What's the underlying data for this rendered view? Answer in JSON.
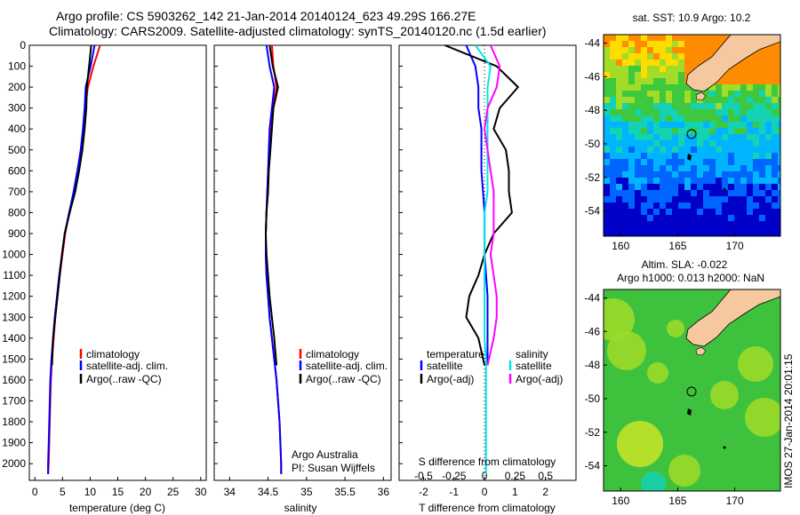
{
  "header": {
    "line1": "Argo profile: CS 5903262_142 21-Jan-2014 20140124_623 49.29S 166.27E",
    "line2": "Climatology: CARS2009. Satellite-adjusted climatology: synTS_20140120.nc (1.5d earlier)"
  },
  "side_text": {
    "vertical_stamp": "IMOS 27-Jan-2014 20:01:15",
    "argo_australia": "Argo Australia",
    "pi": "PI: Susan Wijffels"
  },
  "colors": {
    "climatology": "#ff0000",
    "satellite": "#0000ff",
    "argo": "#000000",
    "sal_satellite": "#00e5ee",
    "sal_argo": "#ff00ff"
  },
  "chart_data": [
    {
      "type": "line",
      "xlabel": "temperature (deg C)",
      "ylabel": "",
      "xlim": [
        -1,
        31
      ],
      "ylim": [
        2080,
        0
      ],
      "xticks": [
        0,
        5,
        10,
        15,
        20,
        25,
        30
      ],
      "yticks": [
        0,
        100,
        200,
        300,
        400,
        500,
        600,
        700,
        800,
        900,
        1000,
        1100,
        1200,
        1300,
        1400,
        1500,
        1600,
        1700,
        1800,
        1900,
        2000
      ],
      "legend": [
        "climatology",
        "satellite-adj. clim.",
        "Argo(..raw -QC)"
      ],
      "legend_position": "lower-left",
      "series": [
        {
          "name": "climatology",
          "color": "#ff0000",
          "x": [
            11.8,
            10.6,
            9.6,
            9.1,
            8.8,
            8.4,
            7.8,
            7.1,
            6.2,
            5.5,
            5.0,
            4.5,
            4.1,
            3.7,
            3.4,
            3.1,
            2.9,
            2.8,
            2.7,
            2.6,
            2.5,
            2.4
          ],
          "y": [
            0,
            100,
            200,
            300,
            400,
            500,
            600,
            700,
            800,
            900,
            1000,
            1100,
            1200,
            1300,
            1400,
            1500,
            1600,
            1700,
            1800,
            1900,
            2000,
            2050
          ]
        },
        {
          "name": "satellite-adj. clim.",
          "color": "#0000ff",
          "x": [
            10.8,
            10.1,
            9.2,
            9.0,
            8.7,
            8.3,
            7.7,
            7.0,
            6.2,
            5.4,
            4.9,
            4.4,
            4.0,
            3.6,
            3.3,
            3.0,
            2.8,
            2.7,
            2.6,
            2.5,
            2.4,
            2.4
          ],
          "y": [
            0,
            100,
            200,
            300,
            400,
            500,
            600,
            700,
            800,
            900,
            1000,
            1100,
            1200,
            1300,
            1400,
            1500,
            1600,
            1700,
            1800,
            1900,
            2000,
            2050
          ]
        },
        {
          "name": "Argo(..raw -QC)",
          "color": "#000000",
          "x": [
            10.2,
            9.8,
            9.4,
            9.3,
            9.0,
            8.6,
            8.0,
            7.3,
            6.3,
            5.4,
            4.9,
            4.5,
            4.1,
            3.7,
            3.3,
            3.1
          ],
          "y": [
            0,
            100,
            200,
            300,
            400,
            500,
            600,
            700,
            800,
            900,
            1000,
            1100,
            1200,
            1300,
            1400,
            1530
          ]
        }
      ]
    },
    {
      "type": "line",
      "xlabel": "salinity",
      "ylabel": "",
      "xlim": [
        33.8,
        36.1
      ],
      "ylim": [
        2080,
        0
      ],
      "xticks": [
        34,
        34.5,
        35,
        35.5,
        36
      ],
      "legend": [
        "climatology",
        "satellite-adj. clim.",
        "Argo(..raw -QC)"
      ],
      "legend_position": "lower-right",
      "series": [
        {
          "name": "climatology",
          "color": "#ff0000",
          "x": [
            34.55,
            34.57,
            34.61,
            34.56,
            34.53,
            34.52,
            34.5,
            34.49,
            34.48,
            34.47,
            34.47,
            34.48,
            34.5,
            34.52,
            34.55,
            34.58,
            34.61,
            34.63,
            34.65,
            34.66,
            34.67,
            34.67
          ],
          "y": [
            0,
            100,
            200,
            300,
            400,
            500,
            600,
            700,
            800,
            900,
            1000,
            1100,
            1200,
            1300,
            1400,
            1500,
            1600,
            1700,
            1800,
            1900,
            2000,
            2050
          ]
        },
        {
          "name": "satellite-adj. clim.",
          "color": "#0000ff",
          "x": [
            34.48,
            34.52,
            34.58,
            34.55,
            34.52,
            34.51,
            34.5,
            34.49,
            34.48,
            34.47,
            34.47,
            34.48,
            34.5,
            34.52,
            34.55,
            34.58,
            34.61,
            34.63,
            34.65,
            34.66,
            34.67,
            34.67
          ],
          "y": [
            0,
            100,
            200,
            300,
            400,
            500,
            600,
            700,
            800,
            900,
            1000,
            1100,
            1200,
            1300,
            1400,
            1500,
            1600,
            1700,
            1800,
            1900,
            2000,
            2050
          ]
        },
        {
          "name": "Argo(..raw -QC)",
          "color": "#000000",
          "x": [
            34.52,
            34.56,
            34.63,
            34.57,
            34.55,
            34.53,
            34.51,
            34.5,
            34.48,
            34.47,
            34.48,
            34.5,
            34.52,
            34.55,
            34.58,
            34.61
          ],
          "y": [
            0,
            100,
            200,
            300,
            400,
            500,
            600,
            700,
            800,
            900,
            1000,
            1100,
            1200,
            1300,
            1400,
            1530
          ]
        }
      ]
    },
    {
      "type": "line",
      "xlabel": "T difference from climatology",
      "xlabel_top": "S difference from climatology",
      "ylabel": "",
      "xlim": [
        -2.8,
        3.0
      ],
      "ylim": [
        2080,
        0
      ],
      "xticks": [
        -2,
        -1,
        0,
        1,
        2
      ],
      "xticks_s": [
        "-0.5",
        "-0.25",
        "0",
        "0.25",
        "0.5"
      ],
      "xticks_s_values": [
        -2,
        -1,
        0,
        1,
        2
      ],
      "legend_temperature_title": "temperature",
      "legend_salinity_title": "salinity",
      "legend": [
        "satellite",
        "Argo(-adj)",
        "satellite",
        "Argo(-adj)"
      ],
      "legend_position": "lower-center",
      "series": [
        {
          "name": "satellite",
          "color": "#0000ff",
          "x": [
            -0.6,
            -0.3,
            -0.2,
            -0.2,
            -0.1,
            -0.1,
            -0.1,
            -0.05,
            0,
            0,
            0,
            0.05,
            0.1,
            0.1,
            0.1,
            0.1
          ],
          "y": [
            0,
            100,
            200,
            300,
            400,
            500,
            600,
            700,
            800,
            900,
            1000,
            1100,
            1200,
            1300,
            1400,
            1530
          ]
        },
        {
          "name": "Argo(-adj)",
          "color": "#000000",
          "x": [
            -1.3,
            0.4,
            1.1,
            0.5,
            0.3,
            0.7,
            0.8,
            0.8,
            0.9,
            0.3,
            0,
            -0.2,
            -0.5,
            -0.6,
            -0.2,
            0.0
          ],
          "y": [
            0,
            100,
            200,
            300,
            400,
            500,
            600,
            700,
            800,
            900,
            1000,
            1100,
            1200,
            1300,
            1400,
            1530
          ]
        },
        {
          "name": "satellite",
          "color": "#00e5ee",
          "x": [
            -0.3,
            0.2,
            0.1,
            0.1,
            0.1,
            0.1,
            0.1,
            0.1,
            0,
            0,
            0,
            0,
            0,
            0,
            0,
            0.05,
            0.05,
            0.05,
            0.05,
            0.05,
            0.05
          ],
          "y": [
            0,
            100,
            200,
            300,
            400,
            500,
            600,
            700,
            800,
            900,
            1000,
            1100,
            1200,
            1300,
            1400,
            1500,
            1600,
            1700,
            1800,
            1900,
            2050
          ]
        },
        {
          "name": "Argo(-adj)",
          "color": "#ff00ff",
          "x": [
            0.2,
            0.5,
            0.4,
            0.1,
            0.0,
            0.1,
            0.2,
            0.3,
            0.3,
            0.3,
            0.2,
            0.3,
            0.4,
            0.4,
            0.3,
            0.1
          ],
          "y": [
            0,
            100,
            200,
            300,
            400,
            500,
            600,
            700,
            800,
            900,
            1000,
            1100,
            1200,
            1300,
            1400,
            1530
          ]
        }
      ]
    },
    {
      "type": "heatmap",
      "title": "sat. SST: 10.9 Argo: 10.2",
      "xlim": [
        158.5,
        174
      ],
      "ylim": [
        -55.5,
        -43.5
      ],
      "xticks": [
        160,
        165,
        170
      ],
      "yticks": [
        -44,
        -46,
        -48,
        -50,
        -52,
        -54
      ],
      "float_position": [
        166.27,
        -49.29
      ]
    },
    {
      "type": "heatmap",
      "title": "Altim. SLA: -0.022",
      "subtitle": "Argo h1000: 0.013 h2000: NaN",
      "xlim": [
        158.5,
        174
      ],
      "ylim": [
        -55.5,
        -43.5
      ],
      "xticks": [
        160,
        165,
        170
      ],
      "yticks": [
        -44,
        -46,
        -48,
        -50,
        -52,
        -54
      ],
      "float_position": [
        166.27,
        -49.29
      ]
    }
  ]
}
